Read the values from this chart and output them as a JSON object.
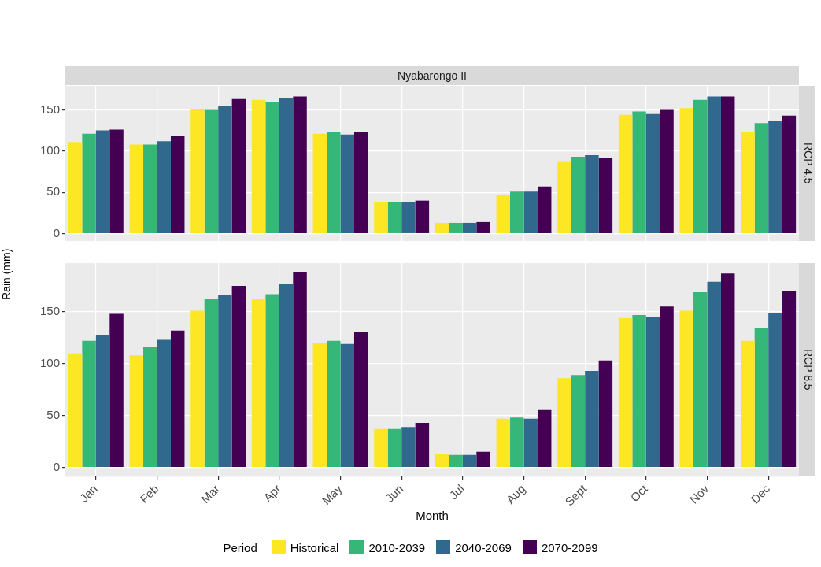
{
  "chart_data": [
    {
      "type": "bar",
      "title": "Nyabarongo II",
      "annotations": [
        "RCP 4.5"
      ],
      "categories": [
        null,
        null,
        null,
        null,
        null,
        null,
        null,
        null,
        null,
        null,
        null,
        null
      ],
      "series": [
        {
          "color": "#fde725",
          "values": [
            111,
            108,
            151,
            162,
            121,
            38,
            13,
            47,
            87,
            144,
            152,
            123
          ]
        },
        {
          "color": "#35b779",
          "values": [
            121,
            108,
            150,
            160,
            123,
            38,
            13,
            51,
            93,
            148,
            162,
            134
          ]
        },
        {
          "color": "#31688e",
          "values": [
            125,
            112,
            155,
            164,
            120,
            38,
            13,
            51,
            95,
            145,
            166,
            136
          ]
        },
        {
          "color": "#440154",
          "values": [
            126,
            118,
            163,
            166,
            123,
            40,
            14,
            57,
            92,
            150,
            166,
            143
          ]
        }
      ],
      "ylim": [
        -9,
        179
      ],
      "yticks": [
        0,
        50,
        100,
        150
      ],
      "grid": true,
      "tick_labels": "y",
      "legend": false
    },
    {
      "type": "bar",
      "annotations": [
        "RCP 8.5"
      ],
      "xlabel": "Month",
      "ylabel": "Rain (mm)",
      "legend": "bottom",
      "legend_title": "Period",
      "categories": [
        "Jan",
        "Feb",
        "Mar",
        "Apr",
        "May",
        "Jun",
        "Jul",
        "Aug",
        "Sept",
        "Oct",
        "Nov",
        "Dec"
      ],
      "series": [
        {
          "name": "Historical",
          "color": "#fde725",
          "values": [
            110,
            108,
            151,
            162,
            120,
            37,
            13,
            47,
            86,
            144,
            151,
            122
          ]
        },
        {
          "name": "2010-2039",
          "color": "#35b779",
          "values": [
            122,
            116,
            162,
            167,
            122,
            37,
            12,
            48,
            89,
            147,
            169,
            134
          ]
        },
        {
          "name": "2040-2069",
          "color": "#31688e",
          "values": [
            128,
            123,
            166,
            177,
            119,
            39,
            12,
            47,
            93,
            145,
            179,
            149
          ]
        },
        {
          "name": "2070-2099",
          "color": "#440154",
          "values": [
            148,
            132,
            175,
            188,
            131,
            43,
            15,
            56,
            103,
            155,
            187,
            170
          ]
        }
      ],
      "ylim": [
        -9,
        197
      ],
      "yticks": [
        0,
        50,
        100,
        150
      ],
      "grid": true
    }
  ]
}
